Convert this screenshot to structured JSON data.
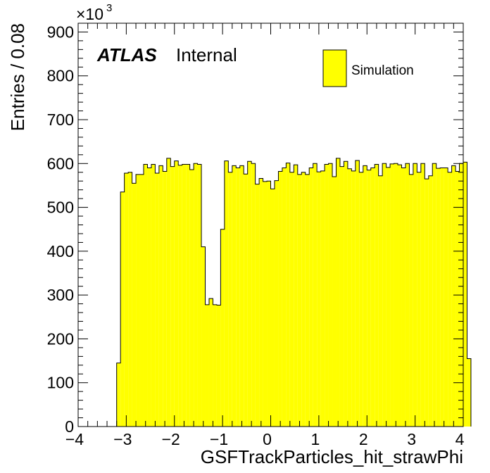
{
  "chart_data": {
    "type": "bar",
    "style": "histogram",
    "xlabel": "GSFTrackParticles_hit_strawPhi",
    "ylabel": "Entries / 0.08",
    "y_multiplier": "×10",
    "y_multiplier_exponent": "3",
    "xlim": [
      -4,
      4
    ],
    "ylim": [
      0,
      920
    ],
    "x_ticks": [
      "−4",
      "−3",
      "−2",
      "−1",
      "0",
      "1",
      "2",
      "3",
      "4"
    ],
    "y_ticks": [
      "0",
      "100",
      "200",
      "300",
      "400",
      "500",
      "600",
      "700",
      "800",
      "900"
    ],
    "bin_start": -3.2,
    "bin_width": 0.08,
    "series": [
      {
        "name": "Simulation",
        "color": "#ffff00",
        "values": [
          145,
          535,
          578,
          580,
          555,
          575,
          575,
          598,
          590,
          598,
          578,
          595,
          582,
          612,
          593,
          606,
          596,
          598,
          598,
          586,
          600,
          598,
          410,
          278,
          292,
          278,
          277,
          450,
          606,
          580,
          595,
          590,
          595,
          576,
          605,
          600,
          553,
          566,
          559,
          560,
          542,
          561,
          582,
          590,
          601,
          580,
          597,
          575,
          580,
          575,
          590,
          600,
          581,
          583,
          598,
          600,
          570,
          612,
          593,
          605,
          588,
          583,
          607,
          580,
          595,
          585,
          590,
          598,
          572,
          600,
          591,
          599,
          600,
          597,
          590,
          600,
          575,
          600,
          580,
          600,
          565,
          572,
          600,
          589,
          590,
          590,
          580,
          595,
          582,
          600,
          603,
          155
        ]
      }
    ],
    "annotations": {
      "atlas": "ATLAS",
      "status": "Internal"
    },
    "legend": {
      "position": "top-right",
      "label": "Simulation"
    }
  }
}
